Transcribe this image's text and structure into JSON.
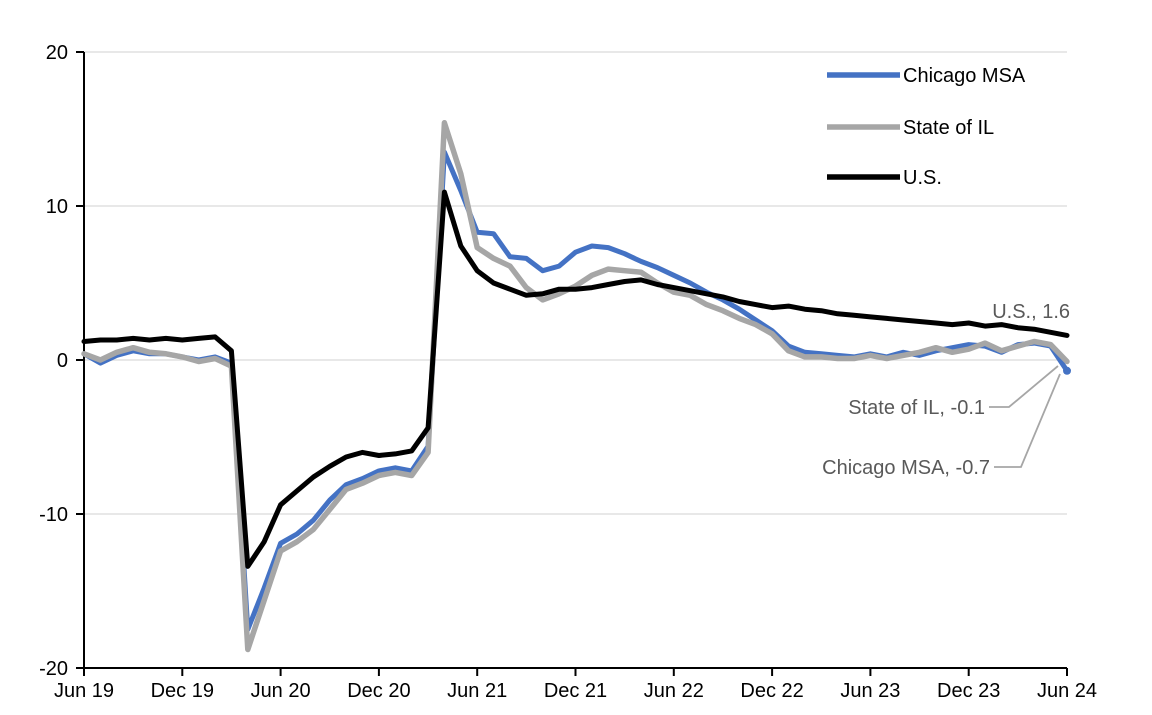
{
  "chart_data": {
    "type": "line",
    "title": "",
    "x_axis": {
      "tick_labels": [
        "Jun 19",
        "Dec 19",
        "Jun 20",
        "Dec 20",
        "Jun 21",
        "Dec 21",
        "Jun 22",
        "Dec 22",
        "Jun 23",
        "Dec 23",
        "Jun 24"
      ],
      "tick_month_indices": [
        0,
        6,
        12,
        18,
        24,
        30,
        36,
        42,
        48,
        54,
        60
      ],
      "start_month": "Jun 2019",
      "end_month": "Jun 2024"
    },
    "y_axis": {
      "tick_labels": [
        "20",
        "10",
        "0",
        "-10",
        "-20"
      ],
      "tick_values": [
        20,
        10,
        0,
        -10,
        -20
      ],
      "range": [
        -20,
        20
      ]
    },
    "grid": true,
    "legend_position": "top-right-inside",
    "series": [
      {
        "name": "Chicago MSA",
        "color": "#4472C4",
        "line_width": 5,
        "values": [
          0.4,
          -0.2,
          0.3,
          0.6,
          0.4,
          0.4,
          0.2,
          0.0,
          0.2,
          -0.2,
          -17.5,
          -14.8,
          -11.9,
          -11.3,
          -10.4,
          -9.1,
          -8.1,
          -7.7,
          -7.2,
          -7.0,
          -7.2,
          -5.6,
          13.5,
          11.0,
          8.3,
          8.2,
          6.7,
          6.6,
          5.8,
          6.1,
          7.0,
          7.4,
          7.3,
          6.9,
          6.4,
          6.0,
          5.5,
          5.0,
          4.4,
          3.9,
          3.3,
          2.6,
          1.9,
          0.9,
          0.5,
          0.4,
          0.3,
          0.2,
          0.4,
          0.2,
          0.5,
          0.3,
          0.6,
          0.8,
          1.0,
          0.9,
          0.5,
          1.0,
          1.1,
          0.9,
          -0.7
        ]
      },
      {
        "name": "State of IL",
        "color": "#A6A6A6",
        "line_width": 5.5,
        "values": [
          0.4,
          0.0,
          0.5,
          0.8,
          0.5,
          0.4,
          0.2,
          -0.1,
          0.1,
          -0.4,
          -18.8,
          -15.6,
          -12.4,
          -11.8,
          -11.0,
          -9.7,
          -8.4,
          -8.0,
          -7.5,
          -7.3,
          -7.5,
          -6.0,
          15.4,
          12.1,
          7.3,
          6.6,
          6.1,
          4.7,
          3.9,
          4.3,
          4.8,
          5.5,
          5.9,
          5.8,
          5.7,
          5.0,
          4.4,
          4.2,
          3.6,
          3.2,
          2.7,
          2.3,
          1.7,
          0.6,
          0.2,
          0.2,
          0.1,
          0.1,
          0.3,
          0.1,
          0.3,
          0.5,
          0.8,
          0.5,
          0.7,
          1.1,
          0.6,
          0.9,
          1.2,
          1.0,
          -0.1
        ]
      },
      {
        "name": "U.S.",
        "color": "#000000",
        "line_width": 5,
        "values": [
          1.2,
          1.3,
          1.3,
          1.4,
          1.3,
          1.4,
          1.3,
          1.4,
          1.5,
          0.6,
          -13.4,
          -11.8,
          -9.4,
          -8.5,
          -7.6,
          -6.9,
          -6.3,
          -6.0,
          -6.2,
          -6.1,
          -5.9,
          -4.4,
          10.9,
          7.4,
          5.8,
          5.0,
          4.6,
          4.2,
          4.3,
          4.6,
          4.6,
          4.7,
          4.9,
          5.1,
          5.2,
          4.9,
          4.7,
          4.5,
          4.3,
          4.1,
          3.8,
          3.6,
          3.4,
          3.5,
          3.3,
          3.2,
          3.0,
          2.9,
          2.8,
          2.7,
          2.6,
          2.5,
          2.4,
          2.3,
          2.4,
          2.2,
          2.3,
          2.1,
          2.0,
          1.8,
          1.6
        ]
      }
    ],
    "end_labels": [
      {
        "text": "U.S., 1.6",
        "series": "U.S.",
        "value": 1.6
      },
      {
        "text": "State of IL, -0.1",
        "series": "State of IL",
        "value": -0.1
      },
      {
        "text": "Chicago MSA, -0.7",
        "series": "Chicago MSA",
        "value": -0.7
      }
    ]
  },
  "colors": {
    "chicago_msa": "#4472C4",
    "state_of_il": "#A6A6A6",
    "us": "#000000",
    "annotation_text": "#595959",
    "leader_line": "#A6A6A6",
    "gridline": "#D9D9D9",
    "axis": "#000000",
    "background": "#FFFFFF"
  }
}
